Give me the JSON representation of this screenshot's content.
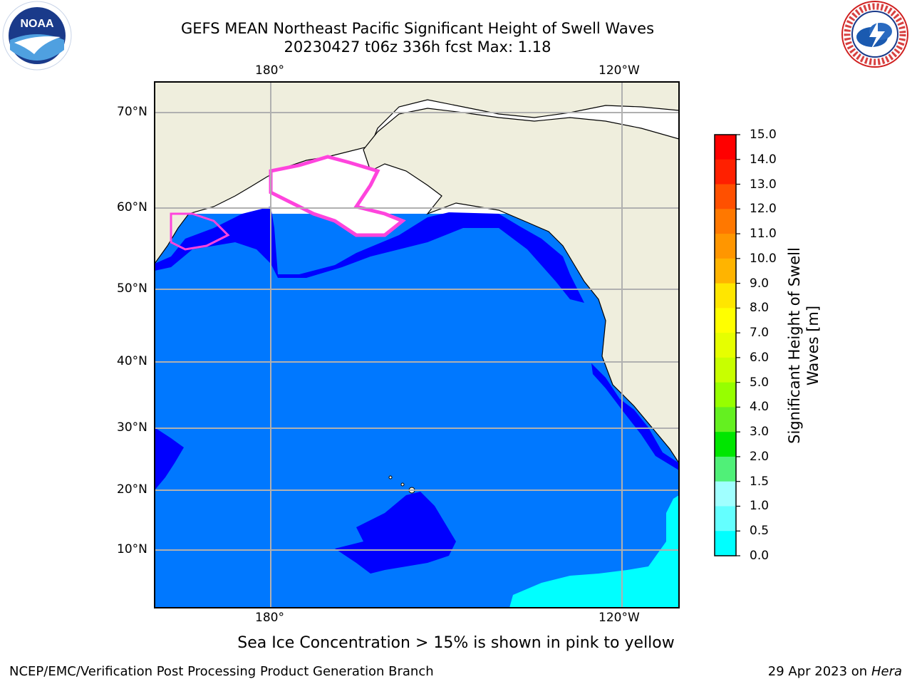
{
  "title": {
    "line1": "GEFS MEAN Northeast Pacific Significant Height of Swell Waves",
    "line2": "20230427 t06z 336h fcst   Max: 1.18"
  },
  "axes": {
    "lon_top": [
      "180°",
      "120°W"
    ],
    "lon_bottom": [
      "180°",
      "120°W"
    ],
    "lat_left": [
      "70°N",
      "60°N",
      "50°N",
      "40°N",
      "30°N",
      "20°N",
      "10°N"
    ]
  },
  "colorbar": {
    "title": "Significant Height of Swell Waves [m]",
    "ticks": [
      "15.0",
      "14.0",
      "13.0",
      "12.0",
      "11.0",
      "10.0",
      "9.0",
      "8.0",
      "7.0",
      "6.0",
      "5.0",
      "4.0",
      "3.0",
      "2.0",
      "1.5",
      "1.0",
      "0.5",
      "0.0"
    ],
    "colors_top_to_bottom": [
      "#ff0000",
      "#ff2000",
      "#ff5000",
      "#ff7800",
      "#ff9600",
      "#ffb400",
      "#ffe600",
      "#ffff00",
      "#e6ff00",
      "#c8ff00",
      "#96ff00",
      "#64f020",
      "#00e600",
      "#50f078",
      "#a0ffff",
      "#64ffff",
      "#00ffff",
      "#0078ff",
      "#0000ff"
    ]
  },
  "note": "Sea Ice Concentration > 15% is shown in pink to yellow",
  "footer": {
    "left": "NCEP/EMC/Verification Post Processing Product Generation Branch",
    "right_date": "29 Apr 2023 on ",
    "right_host": "Hera"
  },
  "logos": {
    "left": "NOAA",
    "right": "NATIONAL WEATHER SERVICE"
  },
  "colors": {
    "land": "#efeedd",
    "ocean_main": "#0078ff",
    "ocean_low": "#0000ff",
    "ocean_high": "#00ffff",
    "ice": "#ff66dd",
    "grid": "#b0b0b0"
  }
}
